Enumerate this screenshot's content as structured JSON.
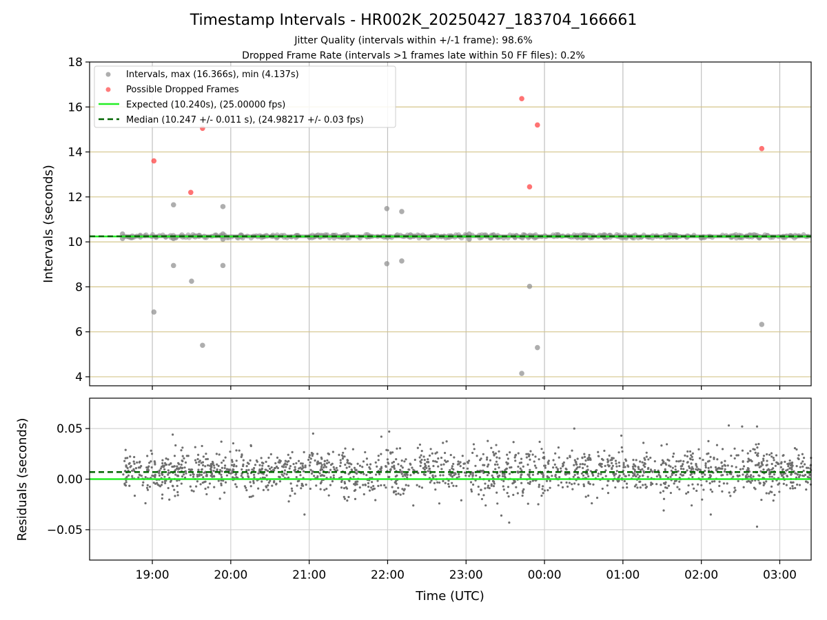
{
  "figure": {
    "title": "Timestamp Intervals - HR002K_20250427_183704_166661",
    "subtitle_1": "Jitter Quality (intervals within +/-1 frame): 98.6%",
    "subtitle_2": "Dropped Frame Rate (intervals >1 frames late within 50 FF files): 0.2%"
  },
  "chart_data": [
    {
      "type": "scatter",
      "ylabel": "Intervals (seconds)",
      "ylim": [
        3.6,
        18
      ],
      "yticks": [
        "4",
        "6",
        "8",
        "10",
        "12",
        "14",
        "16",
        "18"
      ],
      "xlim_hours": [
        18.2,
        27.4
      ],
      "xtick_labels": [
        "19:00",
        "20:00",
        "21:00",
        "22:00",
        "23:00",
        "00:00",
        "01:00",
        "02:00",
        "03:00"
      ],
      "xtick_hours": [
        19,
        20,
        21,
        22,
        23,
        24,
        25,
        26,
        27
      ],
      "legend": {
        "placement": "upper-left",
        "entries": [
          "Intervals, max (16.366s), min (4.137s)",
          "Possible Dropped Frames",
          "Expected (10.240s), (25.00000 fps)",
          "Median (10.247 +/- 0.011 s), (24.98217 +/- 0.03 fps)"
        ]
      },
      "expected_value": 10.24,
      "median_value": 10.247,
      "baseline_band": {
        "x_start_hour": 18.62,
        "x_end_hour": 27.4,
        "center": 10.247,
        "spread": 0.08
      },
      "colors": {
        "intervals": "#8c8c8c",
        "dropped": "#ff4444",
        "expected": "#22ee22",
        "median": "#006400",
        "grid_h": "#d4c58a",
        "grid_v": "#bfbfbf"
      },
      "series": [
        {
          "name": "Intervals, max (16.366s), min (4.137s)",
          "points": [
            [
              19.02,
              6.88
            ],
            [
              19.27,
              11.65
            ],
            [
              19.27,
              8.95
            ],
            [
              19.5,
              8.25
            ],
            [
              19.64,
              5.4
            ],
            [
              19.9,
              11.57
            ],
            [
              19.9,
              8.95
            ],
            [
              21.99,
              11.48
            ],
            [
              21.99,
              9.03
            ],
            [
              22.18,
              11.35
            ],
            [
              22.18,
              9.15
            ],
            [
              23.71,
              4.15
            ],
            [
              23.81,
              8.02
            ],
            [
              23.91,
              5.3
            ],
            [
              26.77,
              6.33
            ],
            [
              18.62,
              10.35
            ],
            [
              18.62,
              10.15
            ],
            [
              19.9,
              10.35
            ],
            [
              19.9,
              10.12
            ],
            [
              19.27,
              10.15
            ],
            [
              23.04,
              10.35
            ],
            [
              23.04,
              10.12
            ]
          ]
        },
        {
          "name": "Possible Dropped Frames",
          "points": [
            [
              19.02,
              13.6
            ],
            [
              19.49,
              12.2
            ],
            [
              19.64,
              15.05
            ],
            [
              23.71,
              16.37
            ],
            [
              23.81,
              12.45
            ],
            [
              23.91,
              15.2
            ],
            [
              26.77,
              14.15
            ]
          ]
        }
      ]
    },
    {
      "type": "scatter",
      "ylabel": "Residuals (seconds)",
      "ylim": [
        -0.08,
        0.08
      ],
      "yticks": [
        "−0.05",
        "0.00",
        "0.05"
      ],
      "ytick_values": [
        -0.05,
        0,
        0.05
      ],
      "xlabel": "Time (UTC)",
      "xlim_hours": [
        18.2,
        27.4
      ],
      "expected_value": 0.0,
      "median_value": 0.007,
      "residual_cloud": {
        "x_start_hour": 18.62,
        "x_end_hour": 27.4,
        "center": 0.007,
        "std": 0.011,
        "count": 1800
      },
      "outliers": [
        [
          19.26,
          0.044
        ],
        [
          19.88,
          0.037
        ],
        [
          21.92,
          0.042
        ],
        [
          22.02,
          0.047
        ],
        [
          23.45,
          -0.036
        ],
        [
          23.55,
          -0.043
        ],
        [
          24.38,
          0.05
        ],
        [
          24.98,
          0.043
        ],
        [
          25.52,
          -0.031
        ],
        [
          26.12,
          -0.035
        ],
        [
          26.35,
          0.053
        ],
        [
          26.52,
          0.052
        ],
        [
          26.71,
          0.052
        ],
        [
          26.71,
          -0.047
        ],
        [
          20.94,
          -0.035
        ],
        [
          21.05,
          0.045
        ]
      ],
      "colors": {
        "points": "#6e6e6e",
        "expected": "#22ee22",
        "median": "#006400",
        "grid": "#cfcfcf"
      }
    }
  ]
}
